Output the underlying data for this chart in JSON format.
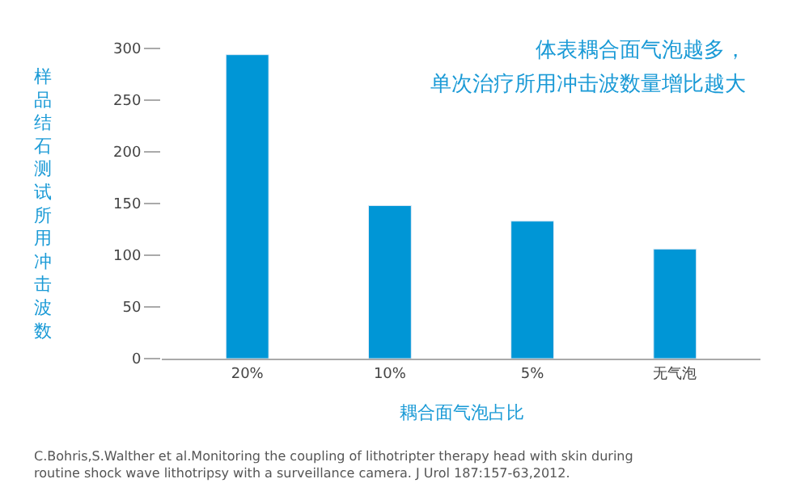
{
  "chart_data": {
    "type": "bar",
    "title": "体表耦合面气泡越多，",
    "subtitle": "单次治疗所用冲击波数量增比越大",
    "xlabel": "耦合面气泡占比",
    "ylabel": "样品结石测试所用冲击波数",
    "categories": [
      "20%",
      "10%",
      "5%",
      "无气泡"
    ],
    "values": [
      294,
      148,
      133,
      106
    ],
    "color": "#0096d6",
    "ylim": [
      0,
      300
    ],
    "yticks": [
      0,
      50,
      100,
      150,
      200,
      250,
      300
    ],
    "annotations": [
      "C.Bohris,S.Walther et al.Monitoring the coupling of lithotripter therapy head with skin during routine shock wave lithotripsy with a surveillance camera. J Urol 187:157-63,2012."
    ]
  }
}
